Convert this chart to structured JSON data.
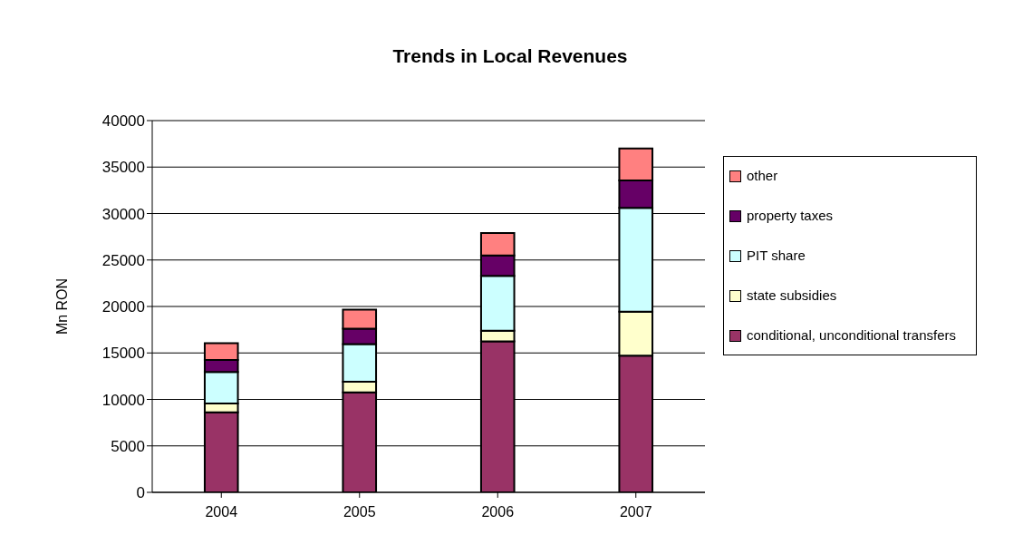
{
  "chart_data": {
    "type": "bar",
    "title": "Trends in Local Revenues",
    "ylabel": "Mn RON",
    "categories": [
      "2004",
      "2005",
      "2006",
      "2007"
    ],
    "stacked": true,
    "series": [
      {
        "name": "conditional, unconditional transfers",
        "color": "#993366",
        "values": [
          8600,
          10750,
          16250,
          14700
        ]
      },
      {
        "name": "state subsidies",
        "color": "#ffffcc",
        "values": [
          950,
          1150,
          1150,
          4750
        ]
      },
      {
        "name": "PIT share",
        "color": "#ccffff",
        "values": [
          3400,
          4050,
          5900,
          11150
        ]
      },
      {
        "name": "property taxes",
        "color": "#660066",
        "values": [
          1300,
          1650,
          2200,
          2950
        ]
      },
      {
        "name": "other",
        "color": "#ff8080",
        "values": [
          1800,
          2050,
          2400,
          3450
        ]
      }
    ],
    "ylim": [
      0,
      40000
    ],
    "yticks": [
      0,
      5000,
      10000,
      15000,
      20000,
      25000,
      30000,
      35000,
      40000
    ],
    "grid": "y",
    "legend": "right"
  }
}
